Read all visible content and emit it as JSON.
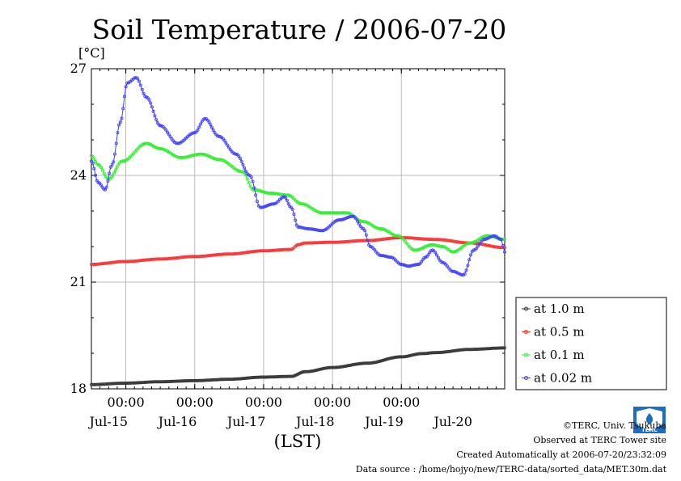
{
  "chart_data": {
    "type": "line",
    "title": "Soil Temperature / 2006-07-20",
    "ylabel": "[°C]",
    "xlabel": "(LST)",
    "ylim": [
      18,
      27
    ],
    "yticks": [
      "27",
      "24",
      "21",
      "18"
    ],
    "xlim": [
      0,
      6
    ],
    "x_units": "days from 2006-07-14 12:00 LST",
    "xtick_time_labels": [
      "00:00",
      "00:00",
      "00:00",
      "00:00",
      "00:00"
    ],
    "xtick_time_positions": [
      0.5,
      1.5,
      2.5,
      3.5,
      4.5
    ],
    "xtick_date_labels": [
      "Jul-15",
      "Jul-16",
      "Jul-17",
      "Jul-18",
      "Jul-19",
      "Jul-20"
    ],
    "xtick_date_positions": [
      0.25,
      1.25,
      2.25,
      3.25,
      4.25,
      5.25
    ],
    "grid": true,
    "legend_position": "right",
    "series": [
      {
        "name": "at 1.0 m",
        "color": "#333333",
        "marker": "circle",
        "points": [
          [
            0,
            18.12
          ],
          [
            0.5,
            18.16
          ],
          [
            1.0,
            18.2
          ],
          [
            1.5,
            18.23
          ],
          [
            2.0,
            18.27
          ],
          [
            2.5,
            18.33
          ],
          [
            2.9,
            18.35
          ],
          [
            3.1,
            18.48
          ],
          [
            3.5,
            18.6
          ],
          [
            4.0,
            18.72
          ],
          [
            4.5,
            18.9
          ],
          [
            4.8,
            18.99
          ],
          [
            5.0,
            19.02
          ],
          [
            5.5,
            19.11
          ],
          [
            6.0,
            19.15
          ]
        ]
      },
      {
        "name": "at 0.5 m",
        "color": "#ff3030",
        "marker": "circle",
        "points": [
          [
            0,
            21.5
          ],
          [
            0.5,
            21.58
          ],
          [
            1.0,
            21.65
          ],
          [
            1.5,
            21.72
          ],
          [
            2.0,
            21.79
          ],
          [
            2.5,
            21.88
          ],
          [
            2.9,
            21.92
          ],
          [
            3.0,
            22.05
          ],
          [
            3.1,
            22.1
          ],
          [
            3.5,
            22.12
          ],
          [
            4.0,
            22.17
          ],
          [
            4.5,
            22.25
          ],
          [
            5.0,
            22.2
          ],
          [
            5.5,
            22.1
          ],
          [
            6.0,
            21.97
          ]
        ]
      },
      {
        "name": "at 0.1 m",
        "color": "#30ee30",
        "marker": "circle",
        "points": [
          [
            0,
            24.55
          ],
          [
            0.1,
            24.3
          ],
          [
            0.25,
            23.9
          ],
          [
            0.45,
            24.4
          ],
          [
            0.8,
            24.9
          ],
          [
            1.0,
            24.75
          ],
          [
            1.3,
            24.5
          ],
          [
            1.6,
            24.6
          ],
          [
            1.85,
            24.45
          ],
          [
            2.2,
            24.1
          ],
          [
            2.35,
            23.6
          ],
          [
            2.6,
            23.5
          ],
          [
            2.85,
            23.45
          ],
          [
            3.05,
            23.2
          ],
          [
            3.35,
            22.95
          ],
          [
            3.7,
            22.95
          ],
          [
            3.95,
            22.7
          ],
          [
            4.2,
            22.5
          ],
          [
            4.45,
            22.3
          ],
          [
            4.7,
            21.9
          ],
          [
            4.95,
            22.05
          ],
          [
            5.1,
            22.0
          ],
          [
            5.25,
            21.85
          ],
          [
            5.5,
            22.1
          ],
          [
            5.75,
            22.3
          ],
          [
            6.0,
            22.2
          ]
        ]
      },
      {
        "name": "at 0.02 m",
        "color": "#4040ff",
        "marker": "circle",
        "points": [
          [
            0,
            24.4
          ],
          [
            0.1,
            23.8
          ],
          [
            0.2,
            23.6
          ],
          [
            0.3,
            24.3
          ],
          [
            0.42,
            25.5
          ],
          [
            0.52,
            26.6
          ],
          [
            0.65,
            26.75
          ],
          [
            0.8,
            26.2
          ],
          [
            1.0,
            25.4
          ],
          [
            1.25,
            24.9
          ],
          [
            1.5,
            25.2
          ],
          [
            1.65,
            25.6
          ],
          [
            1.85,
            25.1
          ],
          [
            2.1,
            24.6
          ],
          [
            2.3,
            24.0
          ],
          [
            2.45,
            23.1
          ],
          [
            2.65,
            23.2
          ],
          [
            2.8,
            23.4
          ],
          [
            2.9,
            23.1
          ],
          [
            3.0,
            22.55
          ],
          [
            3.15,
            22.5
          ],
          [
            3.35,
            22.45
          ],
          [
            3.6,
            22.75
          ],
          [
            3.8,
            22.85
          ],
          [
            3.95,
            22.5
          ],
          [
            4.05,
            22.0
          ],
          [
            4.2,
            21.75
          ],
          [
            4.35,
            21.7
          ],
          [
            4.5,
            21.5
          ],
          [
            4.6,
            21.45
          ],
          [
            4.75,
            21.5
          ],
          [
            4.85,
            21.7
          ],
          [
            4.95,
            21.9
          ],
          [
            5.1,
            21.55
          ],
          [
            5.25,
            21.3
          ],
          [
            5.4,
            21.2
          ],
          [
            5.55,
            21.9
          ],
          [
            5.7,
            22.2
          ],
          [
            5.85,
            22.3
          ],
          [
            5.95,
            22.2
          ],
          [
            6.0,
            21.85
          ]
        ]
      }
    ]
  },
  "footer": {
    "copyright": "©TERC, Univ. Tsukuba",
    "observed": "Observed at TERC Tower site",
    "created": "Created Automatically at 2006-07-20/23:32:09",
    "source": "Data source : /home/hojyo/new/TERC-data/sorted_data/MET.30m.dat"
  },
  "logo": {
    "label": "TERC",
    "color": "#1a6fc4"
  }
}
